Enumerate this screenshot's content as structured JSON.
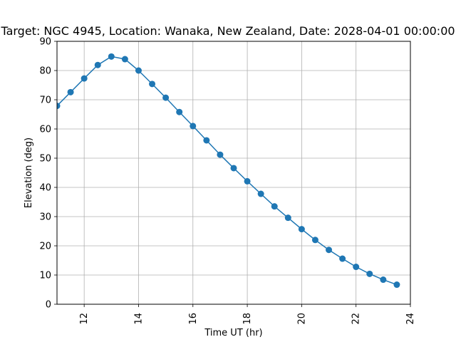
{
  "chart_data": {
    "type": "line",
    "title": "Target: NGC 4945,  Location: Wanaka, New Zealand, Date: 2028-04-01 00:00:00",
    "xlabel": "Time UT (hr)",
    "ylabel": "Elevation (deg)",
    "xlim": [
      11,
      24
    ],
    "ylim": [
      0,
      90
    ],
    "xticks": [
      12,
      14,
      16,
      18,
      20,
      22,
      24
    ],
    "yticks": [
      0,
      10,
      20,
      30,
      40,
      50,
      60,
      70,
      80,
      90
    ],
    "grid": true,
    "marker": "circle",
    "series": [
      {
        "color": "#1f77b4",
        "x": [
          11.0,
          11.5,
          12.0,
          12.5,
          13.0,
          13.5,
          14.0,
          14.5,
          15.0,
          15.5,
          16.0,
          16.5,
          17.0,
          17.5,
          18.0,
          18.5,
          19.0,
          19.5,
          20.0,
          20.5,
          21.0,
          21.5,
          22.0,
          22.5,
          23.0,
          23.5
        ],
        "y": [
          67.9,
          72.6,
          77.3,
          81.9,
          84.8,
          83.9,
          80.0,
          75.4,
          70.7,
          65.8,
          61.0,
          56.1,
          51.2,
          46.6,
          42.1,
          37.8,
          33.5,
          29.6,
          25.7,
          22.0,
          18.6,
          15.6,
          12.8,
          10.4,
          8.4,
          6.7
        ]
      }
    ]
  }
}
